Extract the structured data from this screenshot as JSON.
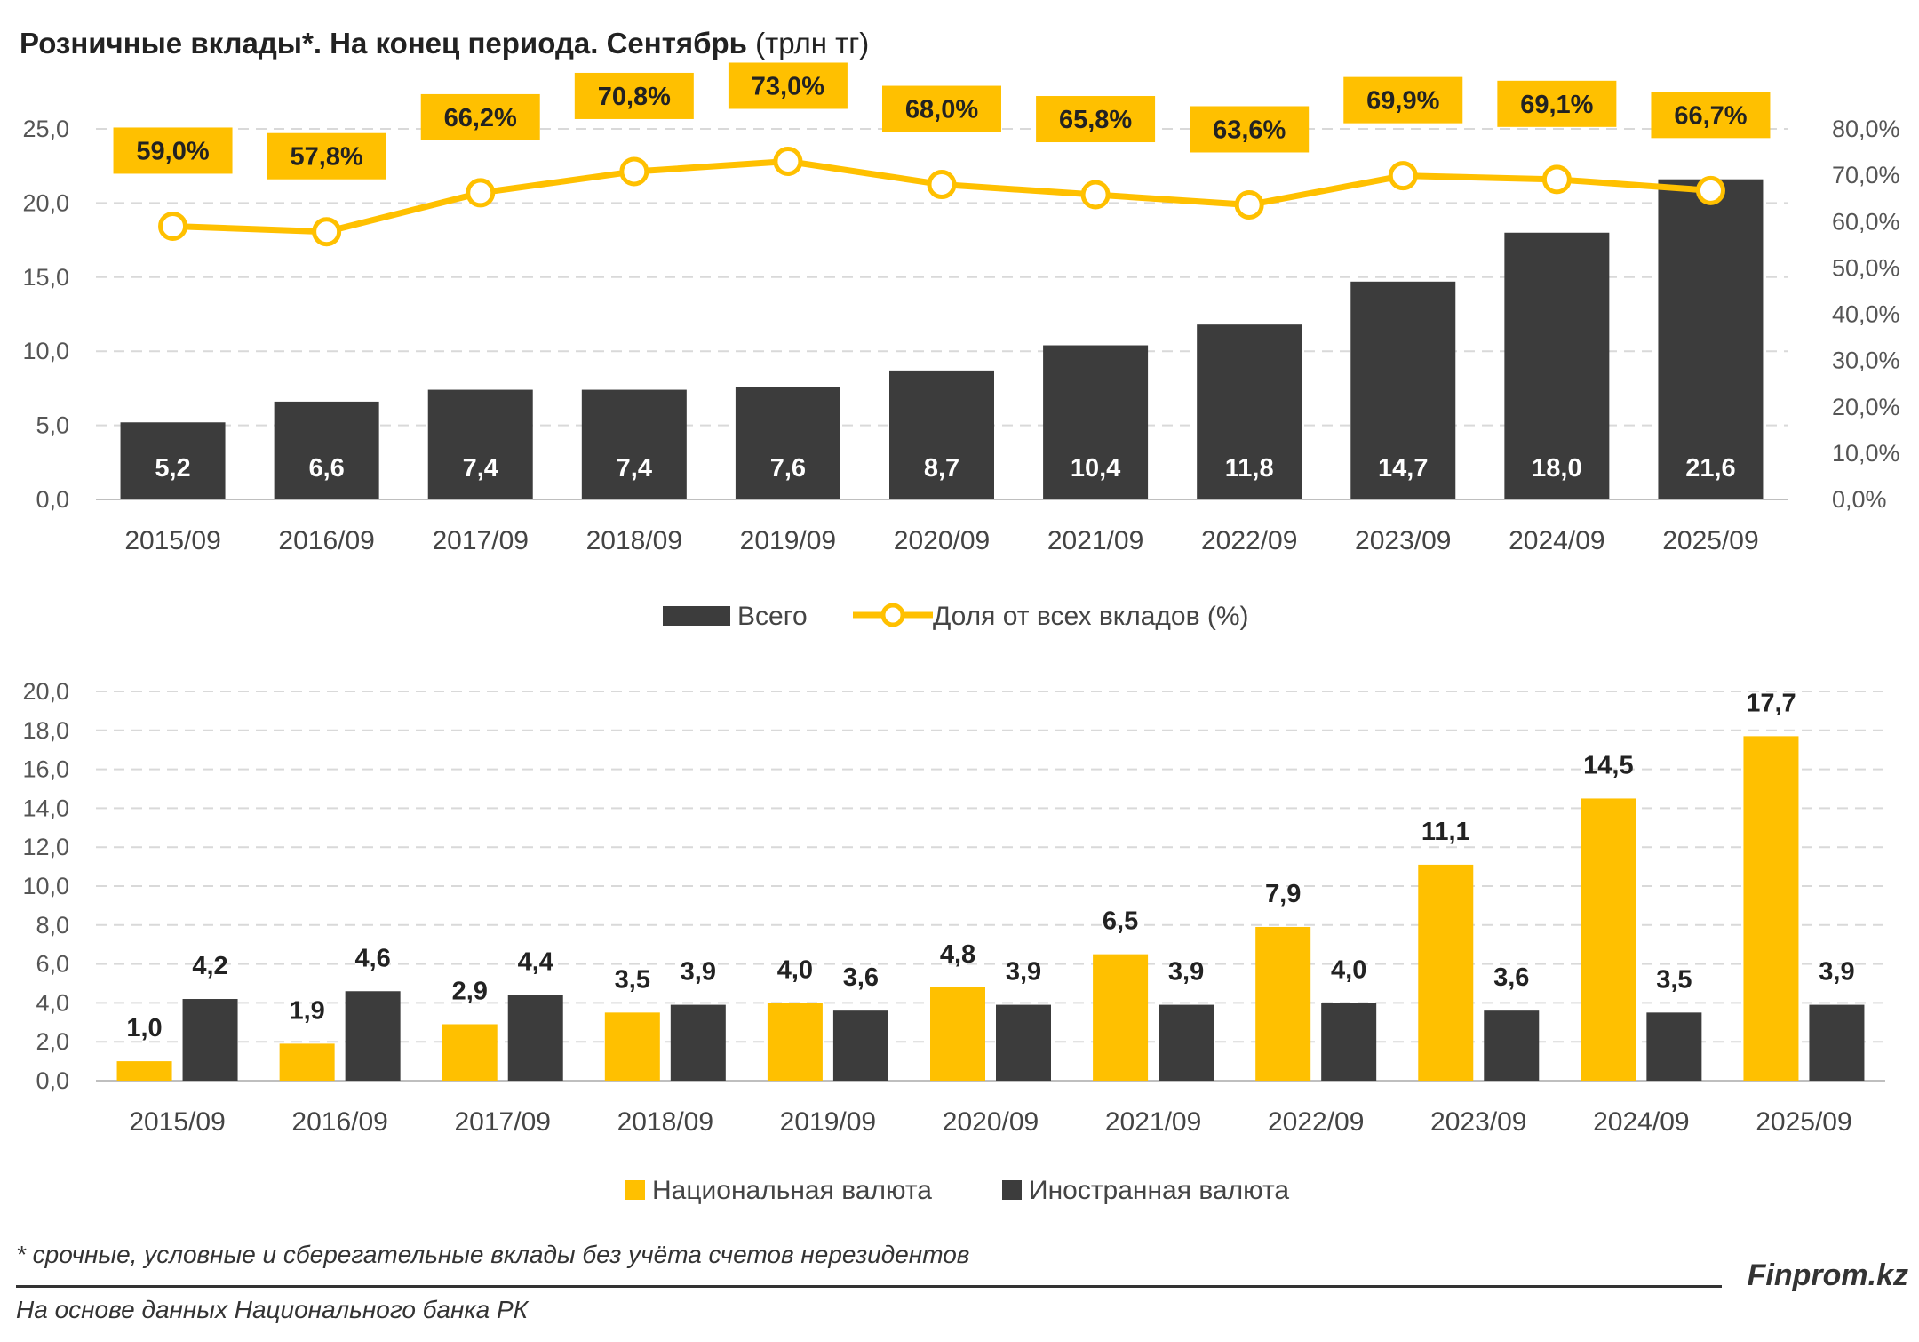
{
  "header": {
    "title_bold": "Розничные вклады*. На конец периода. Сентябрь",
    "title_unit": "(трлн тг)"
  },
  "colors": {
    "dark": "#3c3c3c",
    "gold": "#ffc000",
    "grid": "#d9d9d9",
    "line": "#ffc000"
  },
  "chart_data": [
    {
      "type": "bar+line",
      "categories": [
        "2015/09",
        "2016/09",
        "2017/09",
        "2018/09",
        "2019/09",
        "2020/09",
        "2021/09",
        "2022/09",
        "2023/09",
        "2024/09",
        "2025/09"
      ],
      "series": [
        {
          "name": "Всего",
          "type": "bar",
          "axis": "left",
          "values": [
            5.2,
            6.6,
            7.4,
            7.4,
            7.6,
            8.7,
            10.4,
            11.8,
            14.7,
            18.0,
            21.6
          ],
          "labels": [
            "5,2",
            "6,6",
            "7,4",
            "7,4",
            "7,6",
            "8,7",
            "10,4",
            "11,8",
            "14,7",
            "18,0",
            "21,6"
          ]
        },
        {
          "name": "Доля от всех вкладов (%)",
          "type": "line",
          "axis": "right",
          "values": [
            59.0,
            57.8,
            66.2,
            70.8,
            73.0,
            68.0,
            65.8,
            63.6,
            69.9,
            69.1,
            66.7
          ],
          "labels": [
            "59,0%",
            "57,8%",
            "66,2%",
            "70,8%",
            "73,0%",
            "68,0%",
            "65,8%",
            "63,6%",
            "69,9%",
            "69,1%",
            "66,7%"
          ]
        }
      ],
      "y_left": {
        "ylim": [
          0,
          25
        ],
        "ticks": [
          "0,0",
          "5,0",
          "10,0",
          "15,0",
          "20,0",
          "25,0"
        ]
      },
      "y_right": {
        "ylim": [
          0,
          80
        ],
        "ticks": [
          "0,0%",
          "10,0%",
          "20,0%",
          "30,0%",
          "40,0%",
          "50,0%",
          "60,0%",
          "70,0%",
          "80,0%"
        ]
      },
      "grid": true,
      "legend_position": "bottom"
    },
    {
      "type": "bar",
      "categories": [
        "2015/09",
        "2016/09",
        "2017/09",
        "2018/09",
        "2019/09",
        "2020/09",
        "2021/09",
        "2022/09",
        "2023/09",
        "2024/09",
        "2025/09"
      ],
      "series": [
        {
          "name": "Национальная валюта",
          "values": [
            1.0,
            1.9,
            2.9,
            3.5,
            4.0,
            4.8,
            6.5,
            7.9,
            11.1,
            14.5,
            17.7
          ],
          "labels": [
            "1,0",
            "1,9",
            "2,9",
            "3,5",
            "4,0",
            "4,8",
            "6,5",
            "7,9",
            "11,1",
            "14,5",
            "17,7"
          ]
        },
        {
          "name": "Иностранная валюта",
          "values": [
            4.2,
            4.6,
            4.4,
            3.9,
            3.6,
            3.9,
            3.9,
            4.0,
            3.6,
            3.5,
            3.9
          ],
          "labels": [
            "4,2",
            "4,6",
            "4,4",
            "3,9",
            "3,6",
            "3,9",
            "3,9",
            "4,0",
            "3,6",
            "3,5",
            "3,9"
          ]
        }
      ],
      "y": {
        "ylim": [
          0,
          20
        ],
        "ticks": [
          "0,0",
          "2,0",
          "4,0",
          "6,0",
          "8,0",
          "10,0",
          "12,0",
          "14,0",
          "16,0",
          "18,0",
          "20,0"
        ]
      },
      "grid": true,
      "legend_position": "bottom"
    }
  ],
  "footer": {
    "footnote": "* срочные, условные и сберегательные вклады без учёта счетов нерезидентов",
    "source": "На основе данных Национального банка РК",
    "brand": "Finprom.kz"
  }
}
